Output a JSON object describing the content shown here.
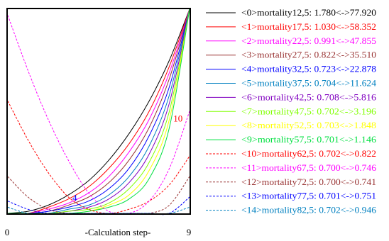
{
  "chart_data": {
    "type": "line",
    "title": "",
    "xlabel": "-Calculation step-",
    "ylabel": "",
    "xlim": [
      0,
      9
    ],
    "ylim": [
      0,
      1
    ],
    "x_ticks": [
      "0",
      "9"
    ],
    "grid": false,
    "legend_placement": "right",
    "annotations": [
      {
        "text": "10",
        "x": 8.2,
        "y": 0.45,
        "color": "#ff0000"
      },
      {
        "text": "4",
        "x": 3.2,
        "y": 0.06,
        "color": "#0000ff"
      }
    ],
    "series": [
      {
        "name": "<0>mortality12,5: 1.780<->77.920",
        "color": "#000000",
        "dashed": false,
        "x": [
          0,
          1,
          2,
          3,
          4,
          5,
          6,
          7,
          8,
          9
        ],
        "y": [
          0.0,
          0.01,
          0.04,
          0.09,
          0.16,
          0.26,
          0.39,
          0.55,
          0.75,
          1.0
        ]
      },
      {
        "name": "<1>mortality17,5: 1.030<->58.352",
        "color": "#ff0000",
        "dashed": false,
        "x": [
          0,
          1,
          2,
          3,
          4,
          5,
          6,
          7,
          8,
          9
        ],
        "y": [
          0.0,
          0.0,
          0.03,
          0.07,
          0.13,
          0.22,
          0.34,
          0.5,
          0.72,
          1.0
        ]
      },
      {
        "name": "<2>mortality22,5: 0.991<->47.855",
        "color": "#ff00ff",
        "dashed": false,
        "x": [
          0,
          1,
          2,
          3,
          4,
          5,
          6,
          7,
          8,
          9
        ],
        "y": [
          0.0,
          0.0,
          0.02,
          0.05,
          0.1,
          0.18,
          0.3,
          0.46,
          0.69,
          1.0
        ]
      },
      {
        "name": "<3>mortality27,5: 0.822<->35.510",
        "color": "#993333",
        "dashed": false,
        "x": [
          0,
          1,
          2,
          3,
          4,
          5,
          6,
          7,
          8,
          9
        ],
        "y": [
          0.0,
          0.0,
          0.01,
          0.04,
          0.08,
          0.15,
          0.26,
          0.42,
          0.66,
          1.0
        ]
      },
      {
        "name": "<4>mortality32,5: 0.723<->22.878",
        "color": "#0000ff",
        "dashed": false,
        "x": [
          0,
          1,
          2,
          3,
          4,
          5,
          6,
          7,
          8,
          9
        ],
        "y": [
          0.0,
          0.0,
          0.01,
          0.03,
          0.06,
          0.12,
          0.22,
          0.38,
          0.62,
          1.0
        ]
      },
      {
        "name": "<5>mortality37,5: 0.704<->11.624",
        "color": "#0080c0",
        "dashed": false,
        "x": [
          0,
          1,
          2,
          3,
          4,
          5,
          6,
          7,
          8,
          9
        ],
        "y": [
          0.0,
          0.0,
          0.0,
          0.02,
          0.04,
          0.09,
          0.18,
          0.33,
          0.58,
          1.0
        ]
      },
      {
        "name": "<6>mortality42,5: 0.708<->5.816",
        "color": "#8000c0",
        "dashed": false,
        "x": [
          0,
          1,
          2,
          3,
          4,
          5,
          6,
          7,
          8,
          9
        ],
        "y": [
          0.0,
          0.0,
          0.0,
          0.01,
          0.03,
          0.07,
          0.15,
          0.29,
          0.54,
          1.0
        ]
      },
      {
        "name": "<7>mortality47,5: 0.702<->3.196",
        "color": "#80ff00",
        "dashed": false,
        "x": [
          0,
          1,
          2,
          3,
          4,
          5,
          6,
          7,
          8,
          9
        ],
        "y": [
          0.0,
          0.0,
          0.0,
          0.01,
          0.02,
          0.05,
          0.12,
          0.25,
          0.5,
          1.0
        ]
      },
      {
        "name": "<8>mortality52,5: 0.703<->1.848",
        "color": "#ffff00",
        "dashed": false,
        "x": [
          0,
          1,
          2,
          3,
          4,
          5,
          6,
          7,
          8,
          9
        ],
        "y": [
          0.0,
          0.0,
          0.0,
          0.0,
          0.01,
          0.04,
          0.09,
          0.21,
          0.46,
          1.0
        ]
      },
      {
        "name": "<9>mortality57,5: 0.701<->1.146",
        "color": "#00e040",
        "dashed": false,
        "x": [
          0,
          1,
          2,
          3,
          4,
          5,
          6,
          7,
          8,
          9
        ],
        "y": [
          0.0,
          0.0,
          0.0,
          0.0,
          0.01,
          0.03,
          0.07,
          0.17,
          0.42,
          1.0
        ]
      },
      {
        "name": "<10>mortality62,5: 0.702<->0.822",
        "color": "#ff0000",
        "dashed": true,
        "x": [
          0,
          1,
          2,
          3,
          4,
          5,
          6,
          7,
          8,
          9
        ],
        "y": [
          0.55,
          0.36,
          0.2,
          0.08,
          0.02,
          0.0,
          0.02,
          0.06,
          0.14,
          0.28
        ]
      },
      {
        "name": "<11>mortality67,5: 0.700<->0.746",
        "color": "#ff00ff",
        "dashed": true,
        "x": [
          0,
          1,
          2,
          3,
          4,
          5,
          6,
          7,
          8,
          9
        ],
        "y": [
          0.97,
          0.7,
          0.46,
          0.26,
          0.1,
          0.01,
          0.0,
          0.06,
          0.22,
          0.5
        ]
      },
      {
        "name": "<12>mortality72,5: 0.700<->0.741",
        "color": "#993333",
        "dashed": true,
        "x": [
          0,
          1,
          2,
          3,
          4,
          5,
          6,
          7,
          8,
          9
        ],
        "y": [
          0.18,
          0.08,
          0.02,
          0.0,
          0.0,
          0.0,
          0.0,
          0.0,
          0.04,
          0.18
        ]
      },
      {
        "name": "<13>mortality77,5: 0.701<->0.751",
        "color": "#0000ff",
        "dashed": true,
        "x": [
          0,
          1,
          2,
          3,
          4,
          5,
          6,
          7,
          8,
          9
        ],
        "y": [
          0.06,
          0.02,
          0.0,
          0.0,
          0.0,
          0.0,
          0.0,
          0.0,
          0.0,
          0.08
        ]
      },
      {
        "name": "<14>mortality82,5: 0.702<->0.946",
        "color": "#0080c0",
        "dashed": true,
        "x": [
          0,
          1,
          2,
          3,
          4,
          5,
          6,
          7,
          8,
          9
        ],
        "y": [
          0.03,
          0.0,
          0.0,
          0.0,
          0.0,
          0.0,
          0.0,
          0.0,
          0.0,
          0.03
        ]
      }
    ]
  }
}
